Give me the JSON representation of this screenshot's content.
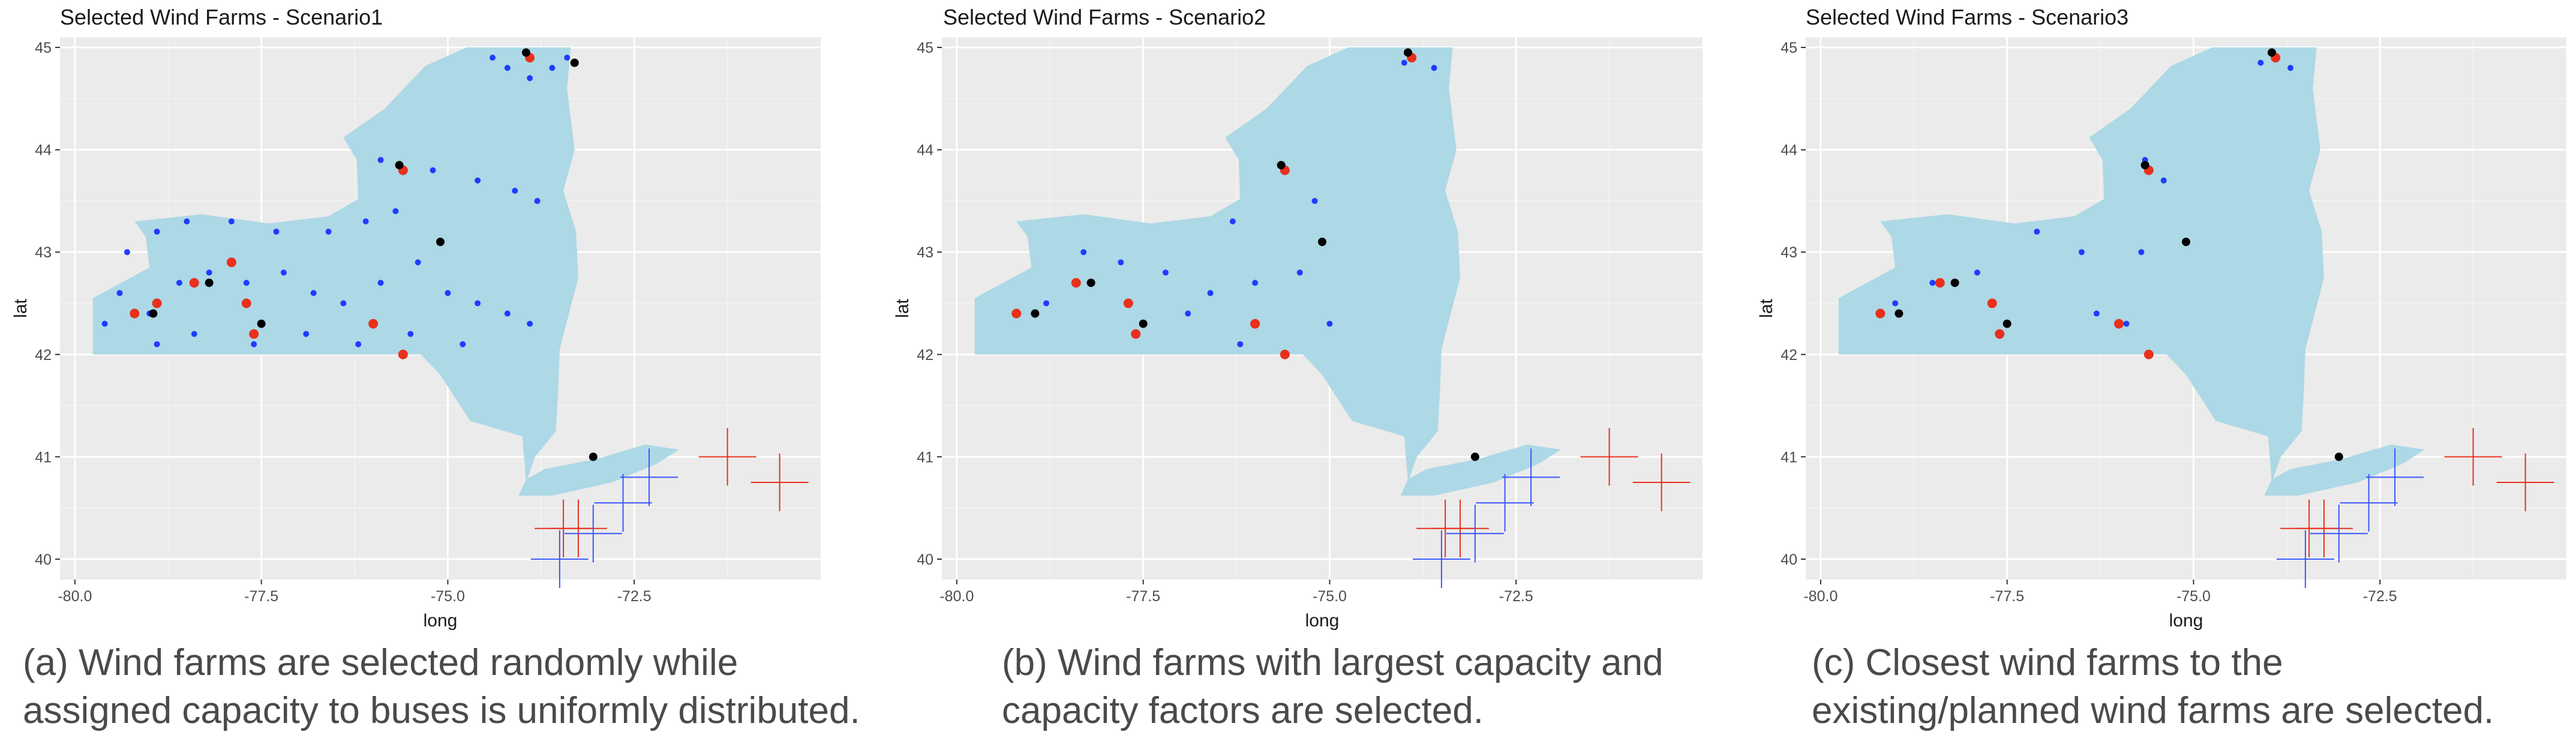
{
  "colors": {
    "panel_bg": "#ebebeb",
    "grid_major": "#ffffff",
    "state_fill": "#add8e6",
    "random": "#1f3cff",
    "selected": "#e8301c",
    "existing": "#000000",
    "cross_red": "#e8301c",
    "cross_blue": "#3a55ff"
  },
  "chart_data": [
    {
      "type": "scatter",
      "title": "Selected Wind Farms - Scenario1",
      "xlabel": "long",
      "ylabel": "lat",
      "xlim": [
        -80.2,
        -70.0
      ],
      "ylim": [
        39.8,
        45.1
      ],
      "x_ticks": [
        -80.0,
        -77.5,
        -75.0,
        -72.5
      ],
      "x_tick_labels": [
        "-80.0",
        "-77.5",
        "-75.0",
        "-72.5"
      ],
      "y_ticks": [
        40,
        41,
        42,
        43,
        44,
        45
      ],
      "y_tick_labels": [
        "40",
        "41",
        "42",
        "43",
        "44",
        "45"
      ],
      "grid": true,
      "series": [
        {
          "key": "blue",
          "points": [
            [
              -74.2,
              44.8
            ],
            [
              -73.9,
              44.7
            ],
            [
              -73.6,
              44.8
            ],
            [
              -73.4,
              44.9
            ],
            [
              -74.4,
              44.9
            ],
            [
              -75.9,
              43.9
            ],
            [
              -75.7,
              43.4
            ],
            [
              -75.2,
              43.8
            ],
            [
              -74.6,
              43.7
            ],
            [
              -74.1,
              43.6
            ],
            [
              -73.8,
              43.5
            ],
            [
              -76.1,
              43.3
            ],
            [
              -76.6,
              43.2
            ],
            [
              -77.3,
              43.2
            ],
            [
              -77.9,
              43.3
            ],
            [
              -78.5,
              43.3
            ],
            [
              -78.9,
              43.2
            ],
            [
              -79.3,
              43.0
            ],
            [
              -79.4,
              42.6
            ],
            [
              -79.6,
              42.3
            ],
            [
              -79.0,
              42.4
            ],
            [
              -78.6,
              42.7
            ],
            [
              -78.2,
              42.8
            ],
            [
              -77.7,
              42.7
            ],
            [
              -77.2,
              42.8
            ],
            [
              -76.8,
              42.6
            ],
            [
              -76.4,
              42.5
            ],
            [
              -75.9,
              42.7
            ],
            [
              -75.4,
              42.9
            ],
            [
              -75.0,
              42.6
            ],
            [
              -74.6,
              42.5
            ],
            [
              -74.2,
              42.4
            ],
            [
              -73.9,
              42.3
            ],
            [
              -74.8,
              42.1
            ],
            [
              -75.5,
              42.2
            ],
            [
              -76.2,
              42.1
            ],
            [
              -76.9,
              42.2
            ],
            [
              -77.6,
              42.1
            ],
            [
              -78.4,
              42.2
            ],
            [
              -78.9,
              42.1
            ]
          ]
        },
        {
          "key": "red",
          "points": [
            [
              -73.9,
              44.9
            ],
            [
              -75.6,
              43.8
            ],
            [
              -79.2,
              42.4
            ],
            [
              -78.9,
              42.5
            ],
            [
              -78.4,
              42.7
            ],
            [
              -77.7,
              42.5
            ],
            [
              -77.6,
              42.2
            ],
            [
              -76.0,
              42.3
            ],
            [
              -75.6,
              42.0
            ],
            [
              -77.9,
              42.9
            ]
          ]
        },
        {
          "key": "black",
          "points": [
            [
              -73.95,
              44.95
            ],
            [
              -75.65,
              43.85
            ],
            [
              -75.1,
              43.1
            ],
            [
              -78.2,
              42.7
            ],
            [
              -77.5,
              42.3
            ],
            [
              -78.95,
              42.4
            ],
            [
              -73.3,
              44.85
            ],
            [
              -73.05,
              41.0
            ]
          ]
        }
      ],
      "crosses": {
        "red": [
          [
            -73.45,
            40.3
          ],
          [
            -73.25,
            40.3
          ],
          [
            -71.25,
            41.0
          ],
          [
            -70.55,
            40.75
          ]
        ],
        "blue": [
          [
            -73.5,
            40.0
          ],
          [
            -73.05,
            40.25
          ],
          [
            -72.65,
            40.55
          ],
          [
            -72.3,
            40.8
          ]
        ]
      }
    },
    {
      "type": "scatter",
      "title": "Selected Wind Farms - Scenario2",
      "xlabel": "long",
      "ylabel": "lat",
      "xlim": [
        -80.2,
        -70.0
      ],
      "ylim": [
        39.8,
        45.1
      ],
      "x_ticks": [
        -80.0,
        -77.5,
        -75.0,
        -72.5
      ],
      "x_tick_labels": [
        "-80.0",
        "-77.5",
        "-75.0",
        "-72.5"
      ],
      "y_ticks": [
        40,
        41,
        42,
        43,
        44,
        45
      ],
      "y_tick_labels": [
        "40",
        "41",
        "42",
        "43",
        "44",
        "45"
      ],
      "grid": true,
      "series": [
        {
          "key": "blue",
          "points": [
            [
              -74.0,
              44.85
            ],
            [
              -73.6,
              44.8
            ],
            [
              -75.2,
              43.5
            ],
            [
              -76.3,
              43.3
            ],
            [
              -78.3,
              43.0
            ],
            [
              -77.8,
              42.9
            ],
            [
              -77.2,
              42.8
            ],
            [
              -76.6,
              42.6
            ],
            [
              -76.0,
              42.7
            ],
            [
              -75.4,
              42.8
            ],
            [
              -75.0,
              42.3
            ],
            [
              -76.9,
              42.4
            ],
            [
              -78.8,
              42.5
            ],
            [
              -76.2,
              42.1
            ]
          ]
        },
        {
          "key": "red",
          "points": [
            [
              -73.9,
              44.9
            ],
            [
              -75.6,
              43.8
            ],
            [
              -79.2,
              42.4
            ],
            [
              -78.4,
              42.7
            ],
            [
              -77.7,
              42.5
            ],
            [
              -77.6,
              42.2
            ],
            [
              -76.0,
              42.3
            ],
            [
              -75.6,
              42.0
            ]
          ]
        },
        {
          "key": "black",
          "points": [
            [
              -73.95,
              44.95
            ],
            [
              -75.65,
              43.85
            ],
            [
              -75.1,
              43.1
            ],
            [
              -78.2,
              42.7
            ],
            [
              -77.5,
              42.3
            ],
            [
              -78.95,
              42.4
            ],
            [
              -73.05,
              41.0
            ]
          ]
        }
      ],
      "crosses": {
        "red": [
          [
            -73.45,
            40.3
          ],
          [
            -73.25,
            40.3
          ],
          [
            -71.25,
            41.0
          ],
          [
            -70.55,
            40.75
          ]
        ],
        "blue": [
          [
            -73.5,
            40.0
          ],
          [
            -73.05,
            40.25
          ],
          [
            -72.65,
            40.55
          ],
          [
            -72.3,
            40.8
          ]
        ]
      }
    },
    {
      "type": "scatter",
      "title": "Selected Wind Farms - Scenario3",
      "xlabel": "long",
      "ylabel": "lat",
      "xlim": [
        -80.2,
        -70.0
      ],
      "ylim": [
        39.8,
        45.1
      ],
      "x_ticks": [
        -80.0,
        -77.5,
        -75.0,
        -72.5
      ],
      "x_tick_labels": [
        "-80.0",
        "-77.5",
        "-75.0",
        "-72.5"
      ],
      "y_ticks": [
        40,
        41,
        42,
        43,
        44,
        45
      ],
      "y_tick_labels": [
        "40",
        "41",
        "42",
        "43",
        "44",
        "45"
      ],
      "grid": true,
      "series": [
        {
          "key": "blue",
          "points": [
            [
              -74.1,
              44.85
            ],
            [
              -73.7,
              44.8
            ],
            [
              -75.65,
              43.9
            ],
            [
              -75.4,
              43.7
            ],
            [
              -75.7,
              43.0
            ],
            [
              -77.1,
              43.2
            ],
            [
              -76.5,
              43.0
            ],
            [
              -79.0,
              42.5
            ],
            [
              -78.5,
              42.7
            ],
            [
              -77.9,
              42.8
            ],
            [
              -76.3,
              42.4
            ],
            [
              -75.9,
              42.3
            ]
          ]
        },
        {
          "key": "red",
          "points": [
            [
              -73.9,
              44.9
            ],
            [
              -75.6,
              43.8
            ],
            [
              -79.2,
              42.4
            ],
            [
              -78.4,
              42.7
            ],
            [
              -77.7,
              42.5
            ],
            [
              -77.6,
              42.2
            ],
            [
              -76.0,
              42.3
            ],
            [
              -75.6,
              42.0
            ]
          ]
        },
        {
          "key": "black",
          "points": [
            [
              -73.95,
              44.95
            ],
            [
              -75.65,
              43.85
            ],
            [
              -75.1,
              43.1
            ],
            [
              -78.2,
              42.7
            ],
            [
              -77.5,
              42.3
            ],
            [
              -78.95,
              42.4
            ],
            [
              -73.05,
              41.0
            ]
          ]
        }
      ],
      "crosses": {
        "red": [
          [
            -73.45,
            40.3
          ],
          [
            -73.25,
            40.3
          ],
          [
            -71.25,
            41.0
          ],
          [
            -70.55,
            40.75
          ]
        ],
        "blue": [
          [
            -73.5,
            40.0
          ],
          [
            -73.05,
            40.25
          ],
          [
            -72.65,
            40.55
          ],
          [
            -72.3,
            40.8
          ]
        ]
      }
    }
  ],
  "captions": [
    {
      "line1": "(a) Wind farms are selected randomly while",
      "line2": "assigned capacity to buses is uniformly distributed."
    },
    {
      "line1": "(b) Wind farms with largest capacity and",
      "line2": "capacity factors are selected."
    },
    {
      "line1": "(c) Closest wind farms to the",
      "line2": "existing/planned wind farms are selected."
    }
  ]
}
